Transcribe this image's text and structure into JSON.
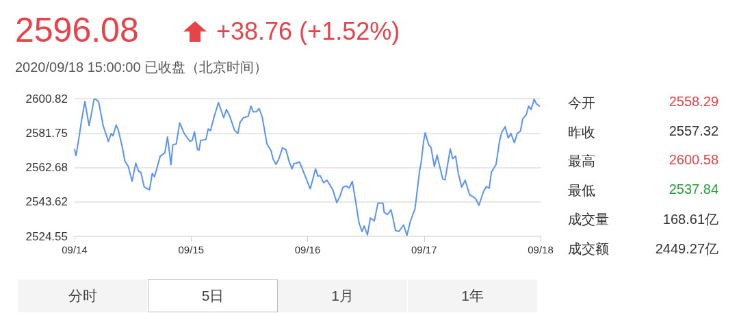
{
  "chart_data": {
    "type": "line",
    "title": "2596.08",
    "subtitle": "+38.76 (+1.52%)",
    "annotations": [
      "2020/09/18 15:00:00 已收盘（北京时间）",
      "今开",
      "2558.29",
      "昨收",
      "2557.32",
      "最高",
      "2600.58",
      "最低",
      "2537.84",
      "成交量",
      "168.61亿",
      "成交额",
      "2449.27亿",
      "分时",
      "5日",
      "1月",
      "1年"
    ],
    "x": [
      "2020-09-14T00:00",
      "2020-09-14T00:17",
      "2020-09-14T00:56",
      "2020-09-14T01:25",
      "2020-09-14T02:07",
      "2020-09-14T02:59",
      "2020-09-14T03:17",
      "2020-09-14T04:00",
      "2020-09-14T04:19",
      "2020-09-14T04:57",
      "2020-09-14T05:53",
      "2020-09-14T06:58",
      "2020-09-14T07:32",
      "2020-09-14T07:54",
      "2020-09-14T08:34",
      "2020-09-14T09:01",
      "2020-09-14T09:53",
      "2020-09-14T10:21",
      "2020-09-14T11:04",
      "2020-09-14T11:51",
      "2020-09-14T12:36",
      "2020-09-14T13:11",
      "2020-09-14T13:39",
      "2020-09-14T14:21",
      "2020-09-14T15:26",
      "2020-09-14T16:00",
      "2020-09-14T16:28",
      "2020-09-14T17:38",
      "2020-09-14T18:36",
      "2020-09-14T19:09",
      "2020-09-14T19:51",
      "2020-09-14T20:14",
      "2020-09-14T20:57",
      "2020-09-14T21:39",
      "2020-09-14T22:35",
      "2020-09-14T23:46",
      "2020-09-15T00:14",
      "2020-09-15T00:42",
      "2020-09-15T01:19",
      "2020-09-15T01:39",
      "2020-09-15T01:58",
      "2020-09-15T03:03",
      "2020-09-15T03:32",
      "2020-09-15T04:00",
      "2020-09-15T04:42",
      "2020-09-15T05:38",
      "2020-09-15T06:43",
      "2020-09-15T07:18",
      "2020-09-15T07:59",
      "2020-09-15T08:56",
      "2020-09-15T09:39",
      "2020-09-15T10:06",
      "2020-09-15T10:49",
      "2020-09-15T11:46",
      "2020-09-15T12:20",
      "2020-09-15T12:48",
      "2020-09-15T13:25",
      "2020-09-15T14:01",
      "2020-09-15T14:41",
      "2020-09-15T15:37",
      "2020-09-15T16:28",
      "2020-09-15T16:57",
      "2020-09-15T17:30",
      "2020-09-15T18:07",
      "2020-09-15T18:49",
      "2020-09-15T19:32",
      "2020-09-15T20:14",
      "2020-09-15T20:48",
      "2020-09-15T21:10",
      "2020-09-15T22:21",
      "2020-09-15T23:17",
      "2020-09-16T00:33",
      "2020-09-16T01:39",
      "2020-09-16T02:07",
      "2020-09-16T02:36",
      "2020-09-16T03:17",
      "2020-09-16T04:00",
      "2020-09-16T05:11",
      "2020-09-16T06:01",
      "2020-09-16T06:40",
      "2020-09-16T07:18",
      "2020-09-16T07:59",
      "2020-09-16T08:34",
      "2020-09-16T09:13",
      "2020-09-16T09:53",
      "2020-09-16T10:35",
      "2020-09-16T11:12",
      "2020-09-16T11:40",
      "2020-09-16T12:20",
      "2020-09-16T12:56",
      "2020-09-16T13:45",
      "2020-09-16T14:30",
      "2020-09-16T15:32",
      "2020-09-16T15:46",
      "2020-09-16T16:28",
      "2020-09-16T17:11",
      "2020-09-16T17:38",
      "2020-09-16T18:07",
      "2020-09-16T18:49",
      "2020-09-16T19:47",
      "2020-09-16T20:28",
      "2020-09-16T21:10",
      "2020-09-16T22:08",
      "2020-09-16T23:04",
      "2020-09-16T23:25",
      "2020-09-16T23:54",
      "2020-09-17T00:14",
      "2020-09-17T00:56",
      "2020-09-17T01:25",
      "2020-09-17T02:07",
      "2020-09-17T02:41",
      "2020-09-17T03:17",
      "2020-09-17T03:52",
      "2020-09-17T04:19",
      "2020-09-17T05:24",
      "2020-09-17T05:53",
      "2020-09-17T06:30",
      "2020-09-17T07:03",
      "2020-09-17T07:45",
      "2020-09-17T08:28",
      "2020-09-17T09:24",
      "2020-09-17T09:59",
      "2020-09-17T10:35",
      "2020-09-17T11:18",
      "2020-09-17T12:14",
      "2020-09-17T12:48",
      "2020-09-17T13:25",
      "2020-09-17T13:52",
      "2020-09-17T14:50",
      "2020-09-17T15:32",
      "2020-09-17T16:00",
      "2020-09-17T16:42",
      "2020-09-17T17:20",
      "2020-09-17T17:53",
      "2020-09-17T18:36",
      "2020-09-17T19:12",
      "2020-09-17T19:51",
      "2020-09-17T20:20",
      "2020-09-17T21:04",
      "2020-09-17T21:33",
      "2020-09-17T22:02",
      "2020-09-17T22:41",
      "2020-09-17T23:10",
      "2020-09-17T23:46"
    ],
    "series": [
      {
        "color": "#5b93f5",
        "values": [
          2572.6,
          2569.2,
          2579.6,
          2588.4,
          2599.2,
          2585.9,
          2589.7,
          2600.4,
          2600.5,
          2599.2,
          2585.9,
          2577.1,
          2581.5,
          2580.2,
          2586.2,
          2583.4,
          2573.3,
          2566.3,
          2563.2,
          2555,
          2565.1,
          2560.6,
          2560,
          2551.8,
          2550.3,
          2559.4,
          2557.5,
          2568.9,
          2570.8,
          2579.6,
          2564.2,
          2575.2,
          2575.8,
          2587.4,
          2581.5,
          2577.1,
          2577.7,
          2582.4,
          2572.6,
          2572.3,
          2577.7,
          2578.1,
          2584,
          2583.1,
          2590.3,
          2598.6,
          2590.3,
          2594.8,
          2591,
          2583.4,
          2581.5,
          2587.8,
          2590.3,
          2591,
          2596.7,
          2593.5,
          2593.5,
          2595.4,
          2590.3,
          2575.8,
          2572,
          2567,
          2564.4,
          2567.6,
          2573.5,
          2572.6,
          2565.7,
          2561.9,
          2564.7,
          2565.7,
          2559.4,
          2550.9,
          2561.9,
          2557.9,
          2558.1,
          2554.3,
          2555.6,
          2550.5,
          2543.2,
          2546.7,
          2551.8,
          2552.4,
          2551.2,
          2555,
          2544.2,
          2532.2,
          2527.2,
          2530.3,
          2525.3,
          2534.7,
          2533.1,
          2543,
          2543,
          2537.9,
          2536.6,
          2539.2,
          2534.1,
          2527.8,
          2527.2,
          2530.9,
          2525,
          2532.8,
          2539.8,
          2560.6,
          2565.7,
          2577.1,
          2581.9,
          2575.2,
          2573.9,
          2563.2,
          2569.5,
          2562.5,
          2556.2,
          2555.8,
          2573,
          2567.6,
          2568.9,
          2559.4,
          2551.8,
          2555.6,
          2547.4,
          2546.7,
          2545.5,
          2541.7,
          2549.3,
          2552,
          2551.2,
          2560,
          2564.4,
          2577.1,
          2582.1,
          2585.3,
          2579,
          2581.5,
          2576.4,
          2581.5,
          2582.8,
          2589.7,
          2592,
          2596.7,
          2594.8,
          2600.5,
          2597.9,
          2596.7
        ]
      }
    ],
    "xlim": [
      "2020-09-14",
      "2020-09-18"
    ],
    "xticks": [
      {
        "value": "2020-09-14",
        "label": "09/14"
      },
      {
        "value": "2020-09-15",
        "label": "09/15"
      },
      {
        "value": "2020-09-16",
        "label": "09/16"
      },
      {
        "value": "2020-09-17",
        "label": "09/17"
      },
      {
        "value": "2020-09-18",
        "label": "09/18"
      }
    ],
    "ylim": [
      2524.55,
      2600.82
    ],
    "yticks": [
      2524.55,
      2543.62,
      2562.68,
      2581.75,
      2600.82
    ],
    "grid": "y",
    "marker": "none",
    "line_style": "solid"
  }
}
